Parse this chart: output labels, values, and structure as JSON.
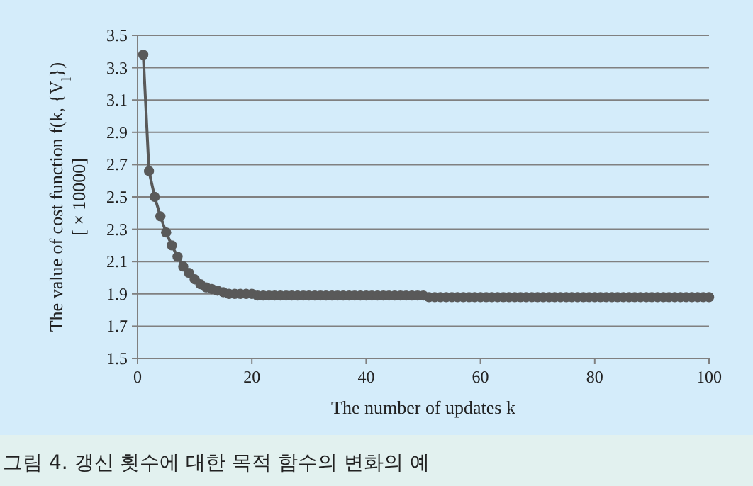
{
  "chart_data": {
    "type": "line",
    "xlabel": "The number of updates k",
    "ylabel": "The value of cost function f(k, {V$_{l}$})\n[ × 10000]",
    "x": [
      1,
      2,
      3,
      4,
      5,
      6,
      7,
      8,
      9,
      10,
      11,
      12,
      13,
      14,
      15,
      16,
      17,
      18,
      19,
      20,
      21,
      22,
      23,
      24,
      25,
      26,
      27,
      28,
      29,
      30,
      31,
      32,
      33,
      34,
      35,
      36,
      37,
      38,
      39,
      40,
      41,
      42,
      43,
      44,
      45,
      46,
      47,
      48,
      49,
      50,
      51,
      52,
      53,
      54,
      55,
      56,
      57,
      58,
      59,
      60,
      61,
      62,
      63,
      64,
      65,
      66,
      67,
      68,
      69,
      70,
      71,
      72,
      73,
      74,
      75,
      76,
      77,
      78,
      79,
      80,
      81,
      82,
      83,
      84,
      85,
      86,
      87,
      88,
      89,
      90,
      91,
      92,
      93,
      94,
      95,
      96,
      97,
      98,
      99,
      100
    ],
    "series": [
      {
        "color": "#595959",
        "values": [
          3.38,
          2.66,
          2.5,
          2.38,
          2.28,
          2.2,
          2.13,
          2.07,
          2.03,
          1.99,
          1.96,
          1.94,
          1.93,
          1.92,
          1.91,
          1.9,
          1.9,
          1.9,
          1.9,
          1.9,
          1.89,
          1.89,
          1.89,
          1.89,
          1.89,
          1.89,
          1.89,
          1.89,
          1.89,
          1.89,
          1.89,
          1.89,
          1.89,
          1.89,
          1.89,
          1.89,
          1.89,
          1.89,
          1.89,
          1.89,
          1.89,
          1.89,
          1.89,
          1.89,
          1.89,
          1.89,
          1.89,
          1.89,
          1.89,
          1.89,
          1.88,
          1.88,
          1.88,
          1.88,
          1.88,
          1.88,
          1.88,
          1.88,
          1.88,
          1.88,
          1.88,
          1.88,
          1.88,
          1.88,
          1.88,
          1.88,
          1.88,
          1.88,
          1.88,
          1.88,
          1.88,
          1.88,
          1.88,
          1.88,
          1.88,
          1.88,
          1.88,
          1.88,
          1.88,
          1.88,
          1.88,
          1.88,
          1.88,
          1.88,
          1.88,
          1.88,
          1.88,
          1.88,
          1.88,
          1.88,
          1.88,
          1.88,
          1.88,
          1.88,
          1.88,
          1.88,
          1.88,
          1.88,
          1.88,
          1.88
        ]
      }
    ],
    "xlim": [
      0,
      100
    ],
    "xticks": [
      0,
      20,
      40,
      60,
      80,
      100
    ],
    "ylim": [
      1.5,
      3.5
    ],
    "yticks": [
      1.5,
      1.7,
      1.9,
      2.1,
      2.3,
      2.5,
      2.7,
      2.9,
      3.1,
      3.3,
      3.5
    ],
    "grid": "y",
    "marker": "circle",
    "annotations": [
      "그림 4.  갱신 횟수에 대한 목적 함수의 변화의 예"
    ]
  }
}
